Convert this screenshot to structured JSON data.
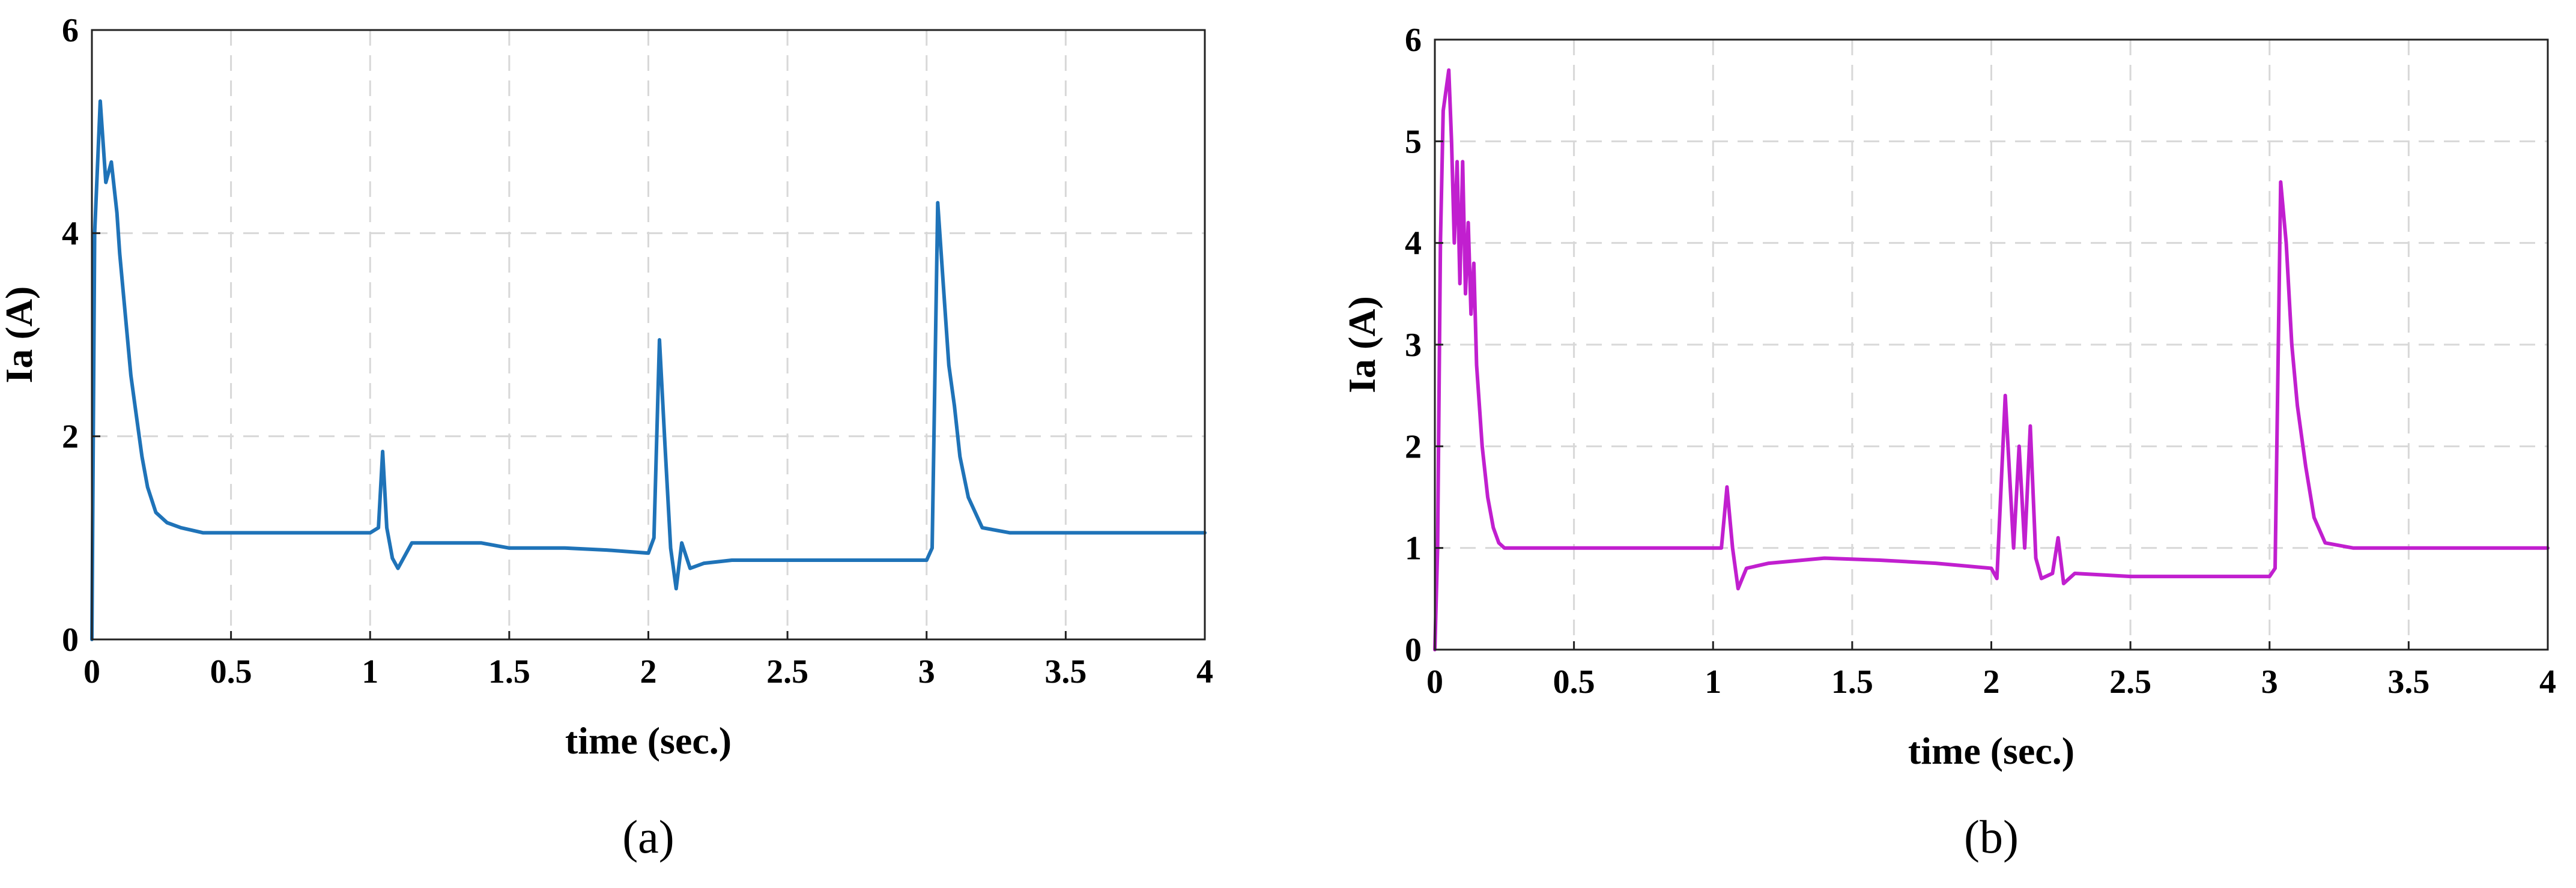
{
  "chart_data": [
    {
      "type": "line",
      "panel_label": "(a)",
      "xlabel": "time (sec.)",
      "ylabel": "Ia (A)",
      "xlim": [
        0,
        4
      ],
      "ylim": [
        0,
        6
      ],
      "xticks": [
        "0",
        "0.5",
        "1",
        "1.5",
        "2",
        "2.5",
        "3",
        "3.5",
        "4"
      ],
      "yticks": [
        "0",
        "2",
        "4",
        "6"
      ],
      "grid": true,
      "color": "#1f73b8",
      "series": [
        {
          "x": [
            0,
            0.01,
            0.03,
            0.05,
            0.07,
            0.09,
            0.1,
            0.12,
            0.14,
            0.16,
            0.18,
            0.2,
            0.23,
            0.27,
            0.32,
            0.4,
            0.5,
            0.6,
            0.7,
            0.8,
            0.9,
            1.0,
            1.03,
            1.045,
            1.06,
            1.08,
            1.1,
            1.15,
            1.25,
            1.4,
            1.5,
            1.7,
            1.85,
            2.0,
            2.02,
            2.04,
            2.06,
            2.08,
            2.1,
            2.12,
            2.15,
            2.2,
            2.3,
            2.5,
            2.7,
            2.9,
            3.0,
            3.02,
            3.04,
            3.06,
            3.08,
            3.1,
            3.12,
            3.15,
            3.2,
            3.3,
            3.5,
            3.7,
            3.9,
            4.0
          ],
          "y": [
            0,
            4.0,
            5.3,
            4.5,
            4.7,
            4.2,
            3.8,
            3.2,
            2.6,
            2.2,
            1.8,
            1.5,
            1.25,
            1.15,
            1.1,
            1.05,
            1.05,
            1.05,
            1.05,
            1.05,
            1.05,
            1.05,
            1.1,
            1.85,
            1.1,
            0.8,
            0.7,
            0.95,
            0.95,
            0.95,
            0.9,
            0.9,
            0.88,
            0.85,
            1.0,
            2.95,
            1.9,
            0.9,
            0.5,
            0.95,
            0.7,
            0.75,
            0.78,
            0.78,
            0.78,
            0.78,
            0.78,
            0.9,
            4.3,
            3.5,
            2.7,
            2.3,
            1.8,
            1.4,
            1.1,
            1.05,
            1.05,
            1.05,
            1.05,
            1.05
          ]
        }
      ]
    },
    {
      "type": "line",
      "panel_label": "(b)",
      "xlabel": "time (sec.)",
      "ylabel": "Ia (A)",
      "xlim": [
        0,
        4
      ],
      "ylim": [
        0,
        6
      ],
      "xticks": [
        "0",
        "0.5",
        "1",
        "1.5",
        "2",
        "2.5",
        "3",
        "3.5",
        "4"
      ],
      "yticks": [
        "0",
        "1",
        "2",
        "3",
        "4",
        "5",
        "6"
      ],
      "grid": true,
      "color": "#c11fcf",
      "series": [
        {
          "x": [
            0,
            0.01,
            0.02,
            0.03,
            0.05,
            0.06,
            0.07,
            0.08,
            0.09,
            0.1,
            0.11,
            0.12,
            0.13,
            0.14,
            0.15,
            0.17,
            0.19,
            0.21,
            0.23,
            0.25,
            0.28,
            0.35,
            0.5,
            0.7,
            0.9,
            1.0,
            1.03,
            1.05,
            1.07,
            1.09,
            1.12,
            1.2,
            1.4,
            1.6,
            1.8,
            2.0,
            2.02,
            2.05,
            2.08,
            2.1,
            2.12,
            2.14,
            2.16,
            2.18,
            2.22,
            2.24,
            2.26,
            2.3,
            2.5,
            2.7,
            2.9,
            3.0,
            3.02,
            3.04,
            3.06,
            3.08,
            3.1,
            3.13,
            3.16,
            3.2,
            3.3,
            3.5,
            3.7,
            3.9,
            4.0
          ],
          "y": [
            0,
            1.0,
            4.0,
            5.3,
            5.7,
            5.0,
            4.0,
            4.8,
            3.6,
            4.8,
            3.5,
            4.2,
            3.3,
            3.8,
            2.8,
            2.0,
            1.5,
            1.2,
            1.05,
            1.0,
            1.0,
            1.0,
            1.0,
            1.0,
            1.0,
            1.0,
            1.0,
            1.6,
            1.0,
            0.6,
            0.8,
            0.85,
            0.9,
            0.88,
            0.85,
            0.8,
            0.7,
            2.5,
            1.0,
            2.0,
            1.0,
            2.2,
            0.9,
            0.7,
            0.75,
            1.1,
            0.65,
            0.75,
            0.72,
            0.72,
            0.72,
            0.72,
            0.8,
            4.6,
            4.0,
            3.0,
            2.4,
            1.8,
            1.3,
            1.05,
            1.0,
            1.0,
            1.0,
            1.0,
            1.0
          ]
        }
      ]
    }
  ]
}
